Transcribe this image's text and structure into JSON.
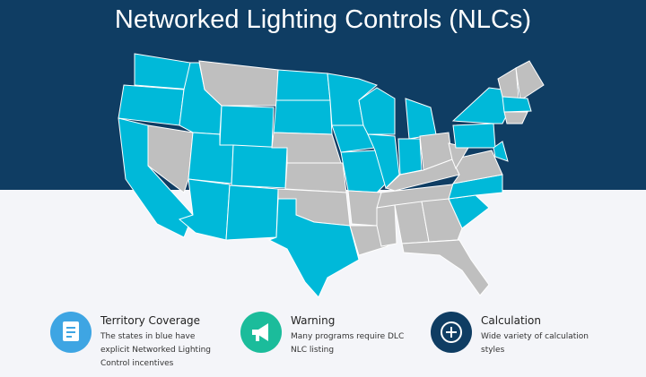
{
  "header": {
    "title": "Networked Lighting Controls (NLCs)"
  },
  "items": [
    {
      "title": "Territory Coverage",
      "text": "The states in blue have explicit Networked Lighting Control incentives"
    },
    {
      "title": "Warning",
      "text": "Many programs require DLC NLC listing"
    },
    {
      "title": "Calculation",
      "text": "Wide variety of calculation styles"
    }
  ]
}
